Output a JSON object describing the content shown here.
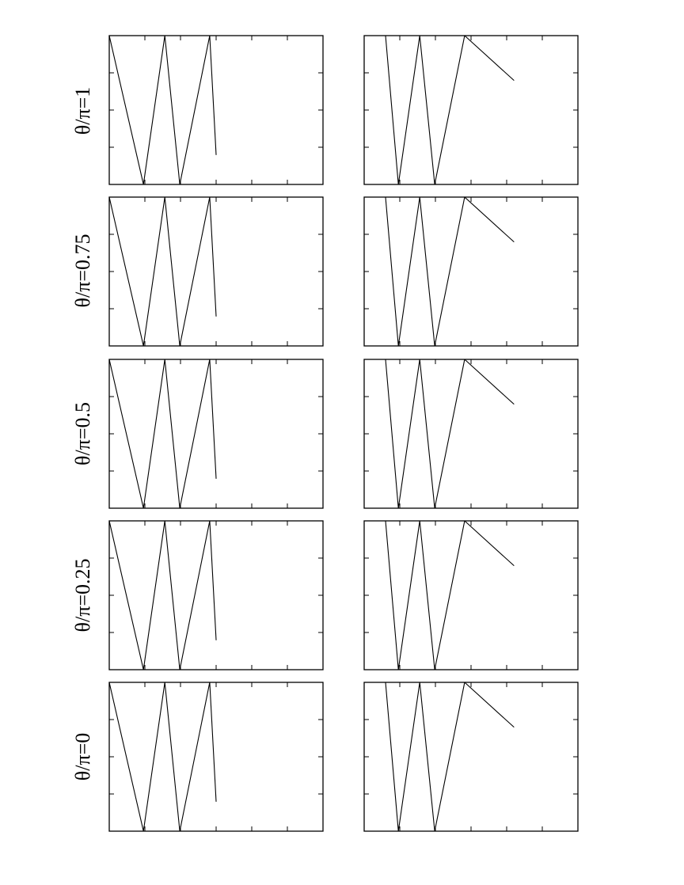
{
  "figure": {
    "row_labels": [
      "θ/π=1",
      "θ/π=0.75",
      "θ/π=0.5",
      "θ/π=0.25",
      "θ/π=0"
    ]
  },
  "chart_data": [
    {
      "type": "line",
      "panel": "θ/π=1, left",
      "title": "",
      "xlabel": "",
      "ylabel": "",
      "grid": false,
      "ylim": [
        0,
        1
      ],
      "x_ticks": 6,
      "y_ticks": 3,
      "series": [
        {
          "values": [
            [
              0,
              1
            ],
            [
              0.16,
              0
            ],
            [
              0.26,
              1
            ],
            [
              0.33,
              0
            ],
            [
              0.47,
              1
            ],
            [
              0.5,
              0.2
            ]
          ]
        }
      ]
    },
    {
      "type": "line",
      "panel": "θ/π=1, right",
      "title": "",
      "xlabel": "",
      "ylabel": "",
      "grid": false,
      "ylim": [
        0,
        1
      ],
      "x_ticks": 6,
      "y_ticks": 3,
      "series": [
        {
          "values": [
            [
              0.1,
              1
            ],
            [
              0.16,
              0
            ],
            [
              0.26,
              1
            ],
            [
              0.33,
              0
            ],
            [
              0.47,
              1
            ],
            [
              0.7,
              0.7
            ]
          ]
        }
      ]
    },
    {
      "type": "line",
      "panel": "θ/π=0.75, left",
      "title": "",
      "xlabel": "",
      "ylabel": "",
      "grid": false,
      "ylim": [
        0,
        1
      ],
      "x_ticks": 6,
      "y_ticks": 3,
      "series": [
        {
          "values": [
            [
              0,
              1
            ],
            [
              0.16,
              0
            ],
            [
              0.26,
              1
            ],
            [
              0.33,
              0
            ],
            [
              0.47,
              1
            ],
            [
              0.5,
              0.2
            ]
          ]
        }
      ]
    },
    {
      "type": "line",
      "panel": "θ/π=0.75, right",
      "title": "",
      "xlabel": "",
      "ylabel": "",
      "grid": false,
      "ylim": [
        0,
        1
      ],
      "x_ticks": 6,
      "y_ticks": 3,
      "series": [
        {
          "values": [
            [
              0.1,
              1
            ],
            [
              0.16,
              0
            ],
            [
              0.26,
              1
            ],
            [
              0.33,
              0
            ],
            [
              0.47,
              1
            ],
            [
              0.7,
              0.7
            ]
          ]
        }
      ]
    },
    {
      "type": "line",
      "panel": "θ/π=0.5, left",
      "title": "",
      "xlabel": "",
      "ylabel": "",
      "grid": false,
      "ylim": [
        0,
        1
      ],
      "x_ticks": 6,
      "y_ticks": 3,
      "series": [
        {
          "values": [
            [
              0,
              1
            ],
            [
              0.16,
              0
            ],
            [
              0.26,
              1
            ],
            [
              0.33,
              0
            ],
            [
              0.47,
              1
            ],
            [
              0.5,
              0.2
            ]
          ]
        }
      ]
    },
    {
      "type": "line",
      "panel": "θ/π=0.5, right",
      "title": "",
      "xlabel": "",
      "ylabel": "",
      "grid": false,
      "ylim": [
        0,
        1
      ],
      "x_ticks": 6,
      "y_ticks": 3,
      "series": [
        {
          "values": [
            [
              0.1,
              1
            ],
            [
              0.16,
              0
            ],
            [
              0.26,
              1
            ],
            [
              0.33,
              0
            ],
            [
              0.47,
              1
            ],
            [
              0.7,
              0.7
            ]
          ]
        }
      ]
    },
    {
      "type": "line",
      "panel": "θ/π=0.25, left",
      "title": "",
      "xlabel": "",
      "ylabel": "",
      "grid": false,
      "ylim": [
        0,
        1
      ],
      "x_ticks": 6,
      "y_ticks": 3,
      "series": [
        {
          "values": [
            [
              0,
              1
            ],
            [
              0.16,
              0
            ],
            [
              0.26,
              1
            ],
            [
              0.33,
              0
            ],
            [
              0.47,
              1
            ],
            [
              0.5,
              0.2
            ]
          ]
        }
      ]
    },
    {
      "type": "line",
      "panel": "θ/π=0.25, right",
      "title": "",
      "xlabel": "",
      "ylabel": "",
      "grid": false,
      "ylim": [
        0,
        1
      ],
      "x_ticks": 6,
      "y_ticks": 3,
      "series": [
        {
          "values": [
            [
              0.1,
              1
            ],
            [
              0.16,
              0
            ],
            [
              0.26,
              1
            ],
            [
              0.33,
              0
            ],
            [
              0.47,
              1
            ],
            [
              0.7,
              0.7
            ]
          ]
        }
      ]
    },
    {
      "type": "line",
      "panel": "θ/π=0, left",
      "title": "",
      "xlabel": "",
      "ylabel": "",
      "grid": false,
      "ylim": [
        0,
        1
      ],
      "x_ticks": 6,
      "y_ticks": 3,
      "series": [
        {
          "values": [
            [
              0,
              1
            ],
            [
              0.16,
              0
            ],
            [
              0.26,
              1
            ],
            [
              0.33,
              0
            ],
            [
              0.47,
              1
            ],
            [
              0.5,
              0.2
            ]
          ]
        }
      ]
    },
    {
      "type": "line",
      "panel": "θ/π=0, right",
      "title": "",
      "xlabel": "",
      "ylabel": "",
      "grid": false,
      "ylim": [
        0,
        1
      ],
      "x_ticks": 6,
      "y_ticks": 3,
      "series": [
        {
          "values": [
            [
              0.1,
              1
            ],
            [
              0.16,
              0
            ],
            [
              0.26,
              1
            ],
            [
              0.33,
              0
            ],
            [
              0.47,
              1
            ],
            [
              0.7,
              0.7
            ]
          ]
        }
      ]
    }
  ]
}
